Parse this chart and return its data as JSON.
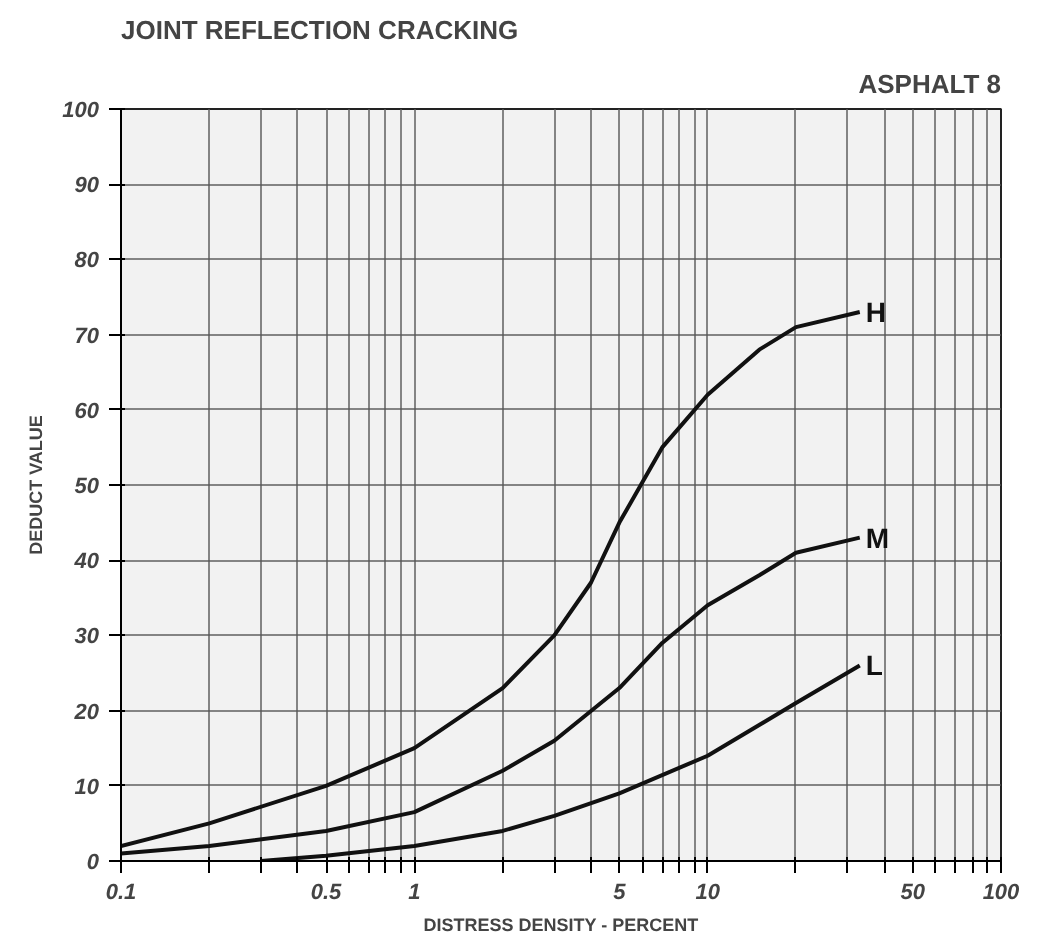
{
  "chart_data": {
    "type": "line",
    "title": "JOINT REFLECTION CRACKING",
    "subtitle": "ASPHALT 8",
    "xlabel": "DISTRESS DENSITY - PERCENT",
    "ylabel": "DEDUCT VALUE",
    "log": "x",
    "grid": true,
    "legend": false,
    "marker": "none",
    "line_style": "solid",
    "xlim": [
      0.1,
      100
    ],
    "ylim": [
      0,
      100
    ],
    "xticks": [
      {
        "value": 0.1,
        "label": "0.1"
      },
      {
        "value": 0.2,
        "label": null
      },
      {
        "value": 0.3,
        "label": null
      },
      {
        "value": 0.4,
        "label": null
      },
      0.5,
      {
        "value": 0.6,
        "label": null
      },
      {
        "value": 0.7,
        "label": null
      },
      {
        "value": 0.8,
        "label": null
      },
      {
        "value": 0.9,
        "label": null
      },
      1,
      {
        "value": 2,
        "label": null
      },
      {
        "value": 3,
        "label": null
      },
      {
        "value": 4,
        "label": null
      },
      5,
      {
        "value": 6,
        "label": null
      },
      {
        "value": 7,
        "label": null
      },
      {
        "value": 8,
        "label": null
      },
      {
        "value": 9,
        "label": null
      },
      10,
      {
        "value": 20,
        "label": null
      },
      {
        "value": 30,
        "label": null
      },
      {
        "value": 40,
        "label": null
      },
      50,
      {
        "value": 60,
        "label": null
      },
      {
        "value": 70,
        "label": null
      },
      {
        "value": 80,
        "label": null
      },
      {
        "value": 90,
        "label": null
      },
      100
    ],
    "yticks": [
      0,
      10,
      20,
      30,
      40,
      50,
      60,
      70,
      80,
      90,
      100
    ],
    "series": [
      {
        "name": "H",
        "color": "#111111",
        "x": [
          0.1,
          0.2,
          0.5,
          1,
          2,
          3,
          4,
          5,
          7,
          10,
          15,
          20,
          33
        ],
        "values": [
          2,
          5,
          10,
          15,
          23,
          30,
          37,
          45,
          55,
          62,
          68,
          71,
          73
        ]
      },
      {
        "name": "M",
        "color": "#111111",
        "x": [
          0.1,
          0.2,
          0.5,
          1,
          2,
          3,
          5,
          7,
          10,
          15,
          20,
          33
        ],
        "values": [
          1,
          2,
          4,
          6.5,
          12,
          16,
          23,
          29,
          34,
          38,
          41,
          43
        ]
      },
      {
        "name": "L",
        "color": "#111111",
        "x": [
          0.3,
          0.5,
          1,
          2,
          3,
          5,
          10,
          20,
          33
        ],
        "values": [
          0,
          0.7,
          2,
          4,
          6,
          9,
          14,
          21,
          26
        ]
      }
    ]
  }
}
